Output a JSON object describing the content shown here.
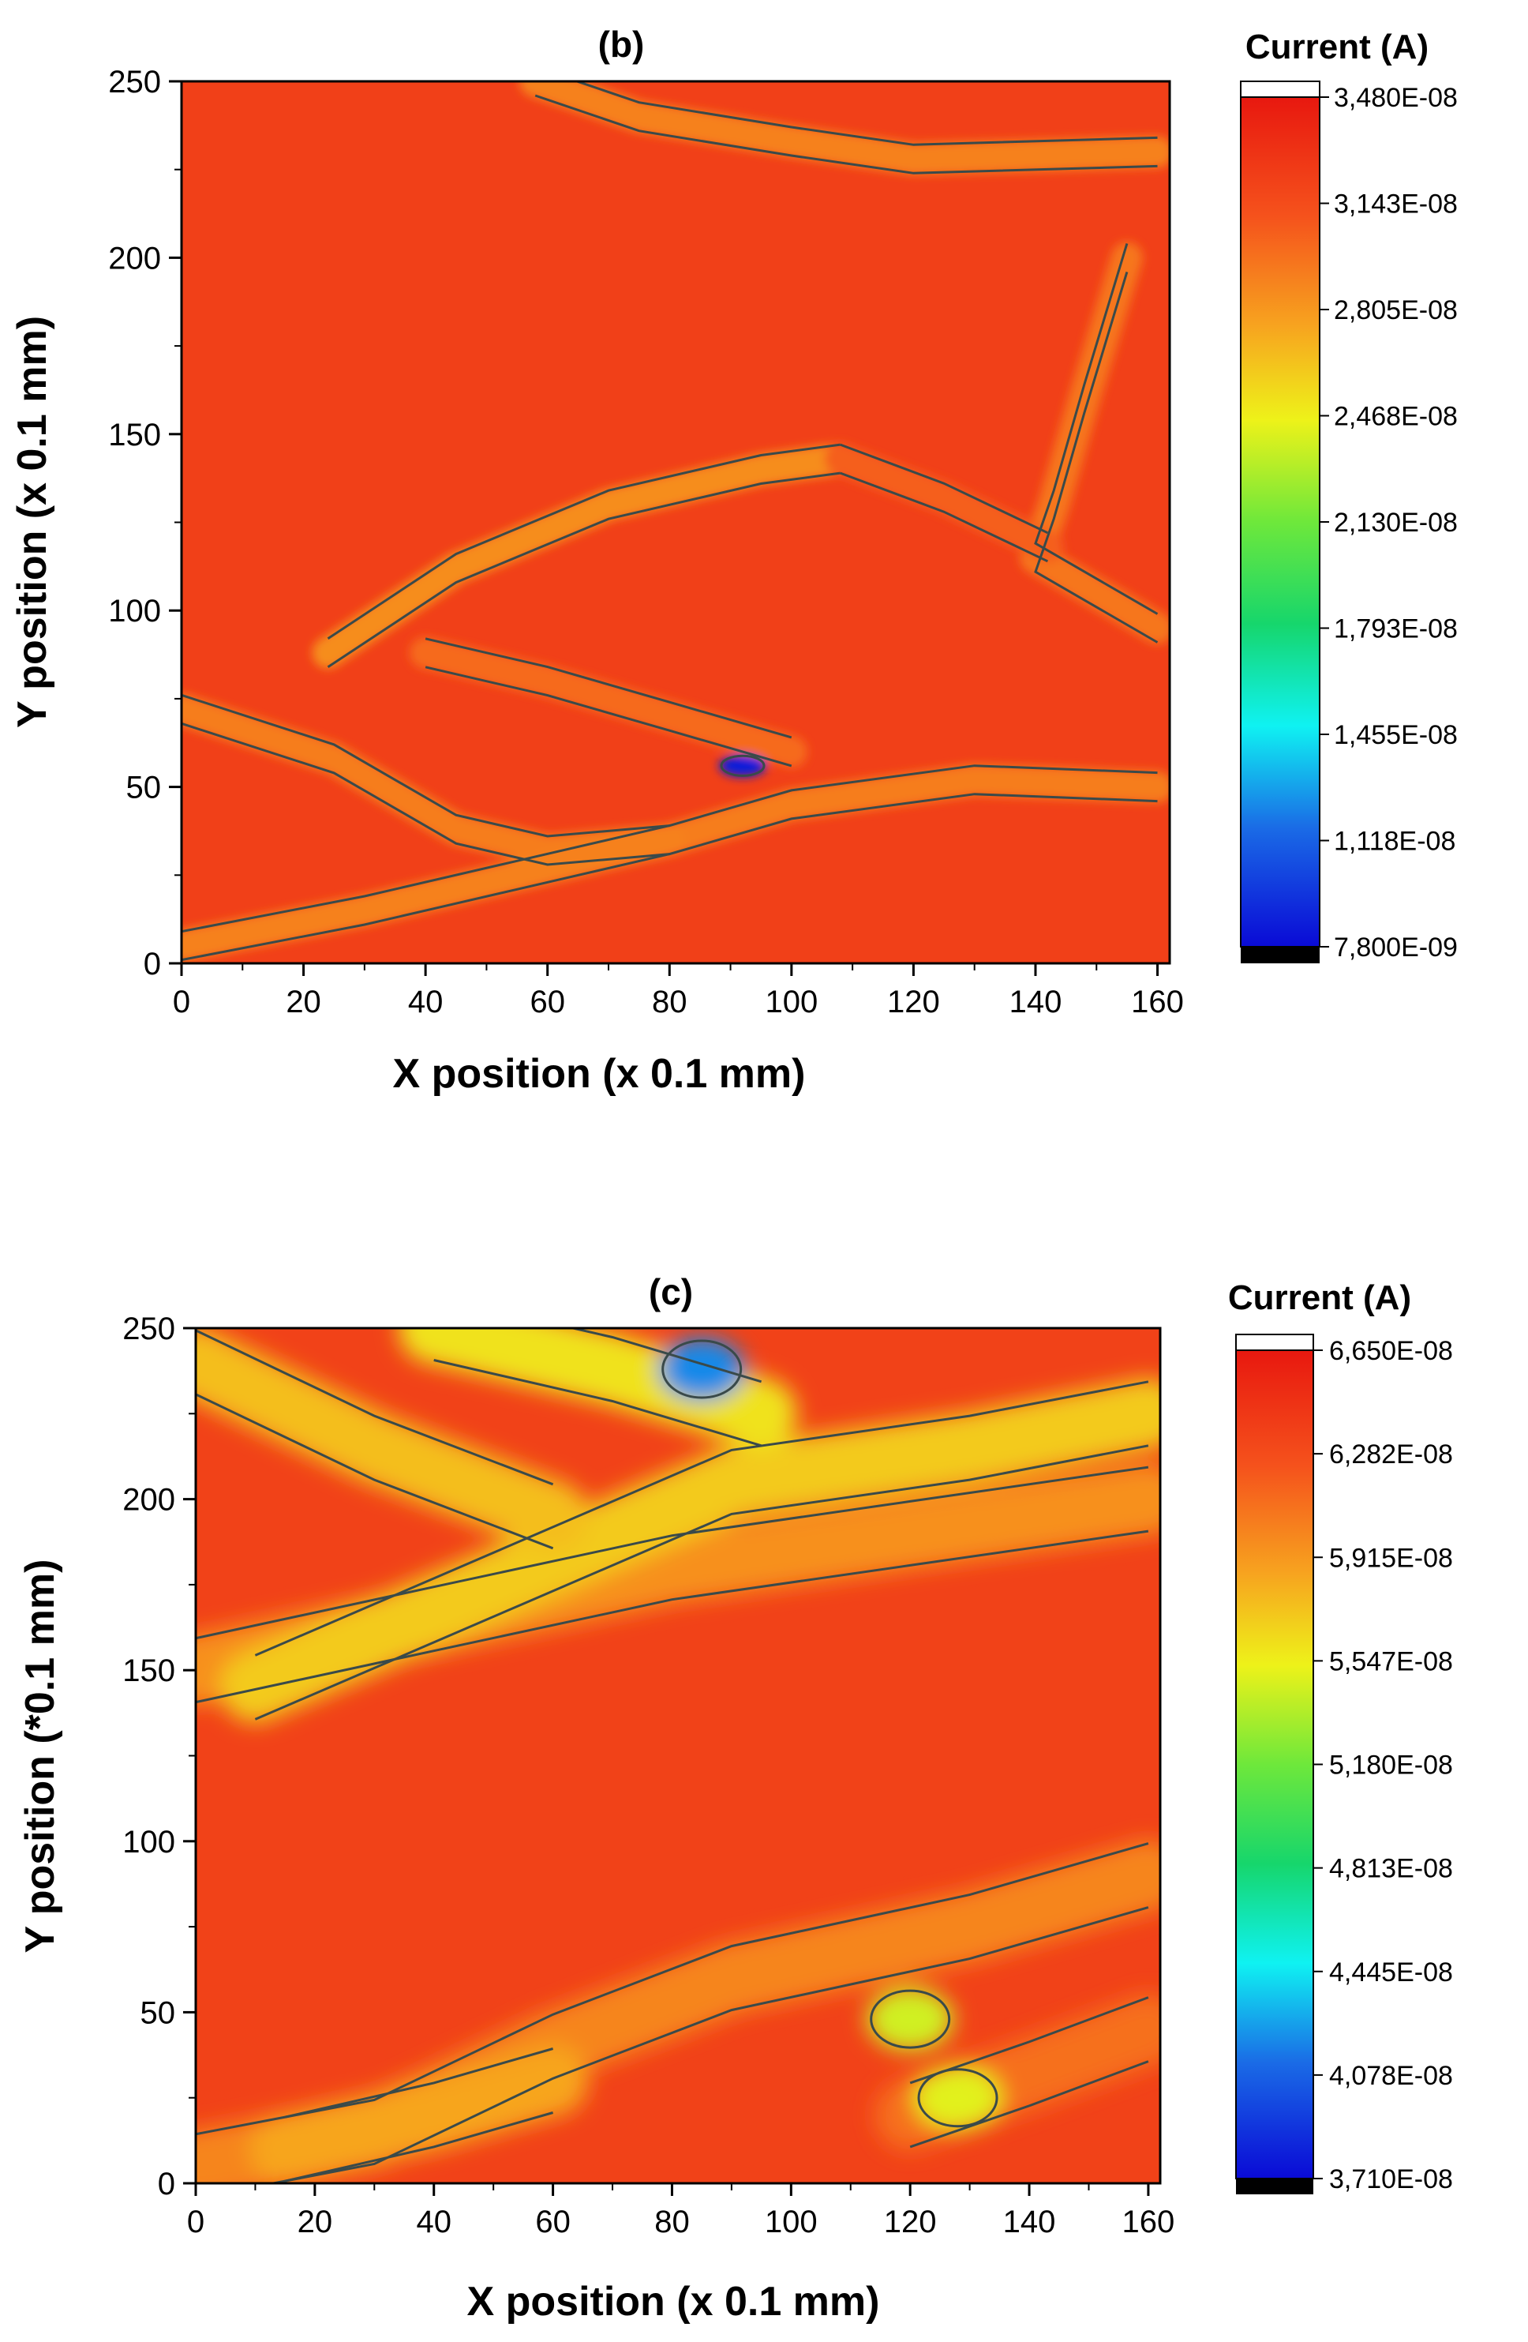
{
  "chart_data": [
    {
      "type": "heatmap",
      "title": "(b)",
      "xlabel": "X position (x 0.1 mm)",
      "ylabel": "Y position (x 0.1 mm)",
      "xlim": [
        0,
        162
      ],
      "ylim": [
        0,
        250
      ],
      "xticks": [
        0,
        20,
        40,
        60,
        80,
        100,
        120,
        140,
        160
      ],
      "yticks": [
        0,
        50,
        100,
        150,
        200,
        250
      ],
      "colorbar": {
        "title": "Current (A)",
        "min": 7.8e-09,
        "max": 3.48e-08,
        "labels": [
          "3,480E-08",
          "3,143E-08",
          "2,805E-08",
          "2,468E-08",
          "2,130E-08",
          "1,793E-08",
          "1,455E-08",
          "1,118E-08",
          "7,800E-09"
        ]
      },
      "base_value": 3.22e-08,
      "features": [
        {
          "kind": "band",
          "value": 2.85e-08,
          "points": [
            [
              24,
              88
            ],
            [
              45,
              112
            ],
            [
              70,
              130
            ],
            [
              95,
              140
            ],
            [
              108,
              143
            ]
          ]
        },
        {
          "kind": "band",
          "value": 2.9e-08,
          "points": [
            [
              58,
              250
            ],
            [
              75,
              240
            ],
            [
              100,
              233
            ],
            [
              120,
              228
            ],
            [
              160,
              230
            ]
          ]
        },
        {
          "kind": "band",
          "value": 2.95e-08,
          "points": [
            [
              155,
              200
            ],
            [
              148,
              160
            ],
            [
              143,
              130
            ],
            [
              140,
              115
            ],
            [
              160,
              95
            ]
          ]
        },
        {
          "kind": "band",
          "value": 2.92e-08,
          "points": [
            [
              0,
              72
            ],
            [
              25,
              58
            ],
            [
              45,
              38
            ],
            [
              60,
              32
            ],
            [
              80,
              35
            ],
            [
              100,
              45
            ],
            [
              130,
              52
            ],
            [
              160,
              50
            ]
          ]
        },
        {
          "kind": "band",
          "value": 2.9e-08,
          "points": [
            [
              0,
              5
            ],
            [
              30,
              15
            ],
            [
              55,
              25
            ],
            [
              80,
              35
            ]
          ]
        },
        {
          "kind": "band",
          "value": 3e-08,
          "points": [
            [
              40,
              88
            ],
            [
              60,
              80
            ],
            [
              80,
              70
            ],
            [
              100,
              60
            ]
          ]
        },
        {
          "kind": "band",
          "value": 3.05e-08,
          "points": [
            [
              108,
              143
            ],
            [
              125,
              132
            ],
            [
              142,
              118
            ]
          ]
        },
        {
          "kind": "spot",
          "value": 8.5e-09,
          "x": 92,
          "y": 56
        }
      ]
    },
    {
      "type": "heatmap",
      "title": "(c)",
      "xlabel": "X position (x 0.1 mm)",
      "ylabel": "Y position (*0.1 mm)",
      "xlim": [
        0,
        162
      ],
      "ylim": [
        0,
        250
      ],
      "xticks": [
        0,
        20,
        40,
        60,
        80,
        100,
        120,
        140,
        160
      ],
      "yticks": [
        0,
        50,
        100,
        150,
        200,
        250
      ],
      "colorbar": {
        "title": "Current (A)",
        "min": 3.71e-08,
        "max": 6.65e-08,
        "labels": [
          "6,650E-08",
          "6,282E-08",
          "5,915E-08",
          "5,547E-08",
          "5,180E-08",
          "4,813E-08",
          "4,445E-08",
          "4,078E-08",
          "3,710E-08"
        ]
      },
      "base_value": 6.35e-08,
      "features": [
        {
          "kind": "band",
          "value": 5.95e-08,
          "points": [
            [
              0,
              150
            ],
            [
              40,
              165
            ],
            [
              80,
              180
            ],
            [
              120,
              190
            ],
            [
              160,
              200
            ]
          ]
        },
        {
          "kind": "band",
          "value": 5.7e-08,
          "points": [
            [
              10,
              145
            ],
            [
              50,
              175
            ],
            [
              90,
              205
            ],
            [
              130,
              215
            ],
            [
              160,
              225
            ]
          ]
        },
        {
          "kind": "band",
          "value": 5.75e-08,
          "points": [
            [
              0,
              240
            ],
            [
              30,
              215
            ],
            [
              60,
              195
            ]
          ]
        },
        {
          "kind": "band",
          "value": 5.6e-08,
          "points": [
            [
              40,
              250
            ],
            [
              70,
              238
            ],
            [
              95,
              225
            ]
          ]
        },
        {
          "kind": "band",
          "value": 6e-08,
          "points": [
            [
              0,
              5
            ],
            [
              30,
              15
            ],
            [
              60,
              40
            ],
            [
              90,
              60
            ],
            [
              130,
              75
            ],
            [
              160,
              90
            ]
          ]
        },
        {
          "kind": "band",
          "value": 5.85e-08,
          "points": [
            [
              15,
              10
            ],
            [
              40,
              20
            ],
            [
              60,
              30
            ]
          ]
        },
        {
          "kind": "band",
          "value": 6.1e-08,
          "points": [
            [
              120,
              20
            ],
            [
              140,
              32
            ],
            [
              160,
              45
            ]
          ]
        },
        {
          "kind": "spot",
          "value": 5.45e-08,
          "x": 120,
          "y": 48
        },
        {
          "kind": "spot",
          "value": 5.5e-08,
          "x": 128,
          "y": 25
        },
        {
          "kind": "spot",
          "value": 4.2e-08,
          "x": 85,
          "y": 238
        }
      ]
    }
  ]
}
